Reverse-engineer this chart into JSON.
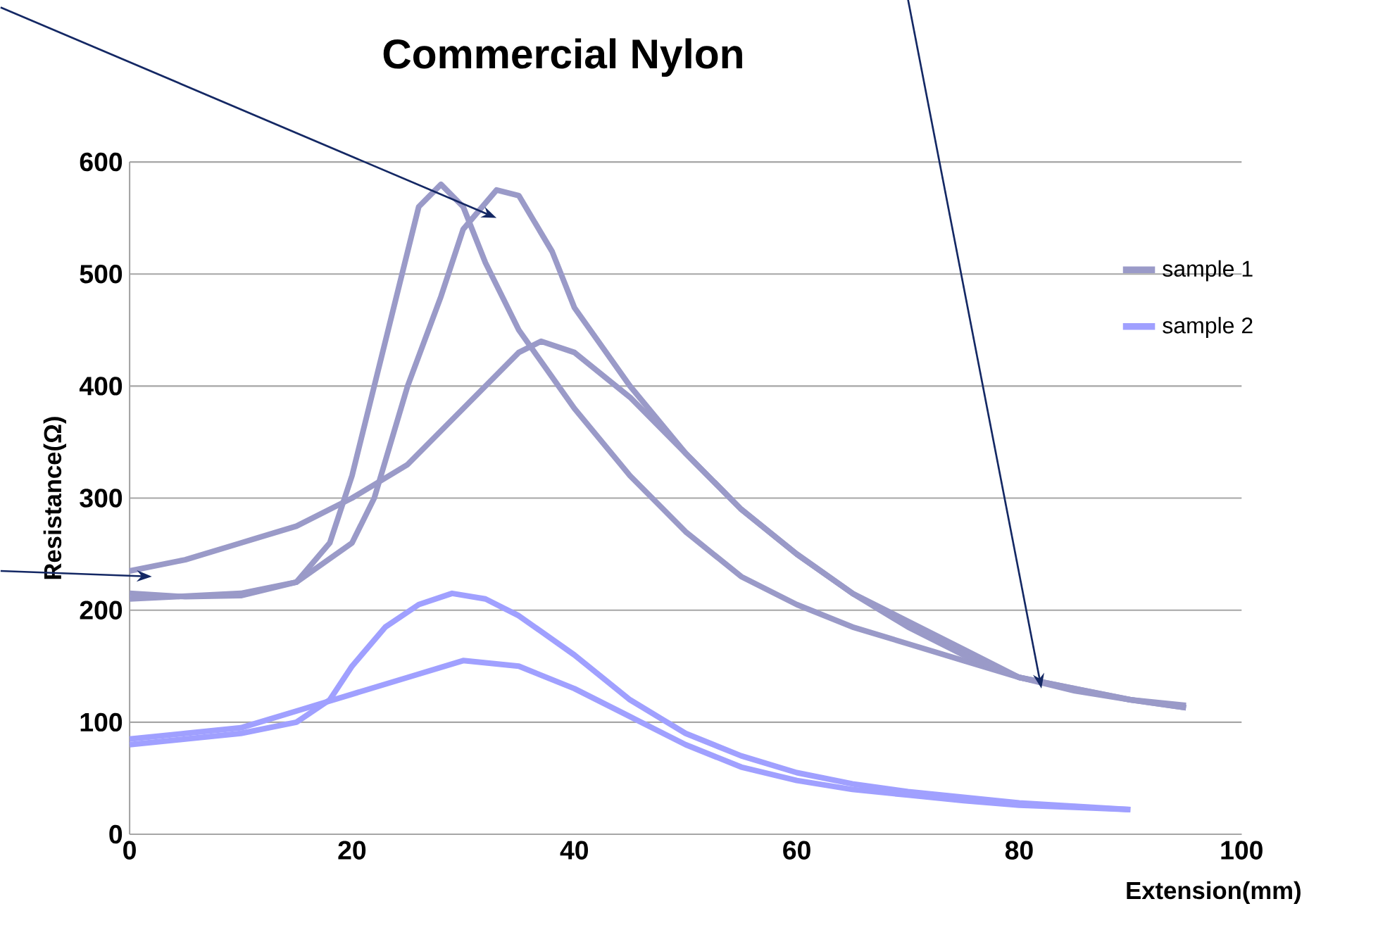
{
  "chart_data": {
    "type": "line",
    "title": "Commercial Nylon",
    "xlabel": "Extension(mm)",
    "ylabel": "Resistance(Ω)",
    "xlim": [
      0,
      100
    ],
    "ylim": [
      0,
      600
    ],
    "xticks": [
      0,
      20,
      40,
      60,
      80,
      100
    ],
    "yticks": [
      0,
      100,
      200,
      300,
      400,
      500,
      600
    ],
    "grid": "y",
    "legend": "right",
    "marker": "none",
    "line_style": "solid",
    "series": [
      {
        "name": "sample 1",
        "color": "#9a9ac8",
        "x": [
          0,
          5,
          10,
          15,
          18,
          20,
          22,
          24,
          26,
          28,
          30,
          32,
          35,
          40,
          45,
          50,
          55,
          60,
          65,
          70,
          75,
          80,
          85,
          90,
          95
        ],
        "values": [
          215,
          212,
          213,
          225,
          260,
          320,
          400,
          480,
          560,
          580,
          560,
          510,
          450,
          380,
          320,
          270,
          230,
          205,
          185,
          170,
          155,
          140,
          130,
          120,
          113
        ]
      },
      {
        "color": "#9a9ac8",
        "x": [
          0,
          10,
          15,
          20,
          22,
          25,
          28,
          30,
          33,
          35,
          38,
          40,
          45,
          50,
          55,
          60,
          65,
          70,
          75,
          80,
          85,
          90,
          95
        ],
        "values": [
          210,
          215,
          225,
          260,
          300,
          400,
          480,
          540,
          575,
          570,
          520,
          470,
          400,
          340,
          290,
          250,
          215,
          190,
          165,
          140,
          130,
          120,
          115
        ]
      },
      {
        "color": "#9a9ac8",
        "x": [
          0,
          5,
          10,
          15,
          20,
          25,
          30,
          35,
          37,
          40,
          45,
          50,
          55,
          60,
          65,
          70,
          75,
          80,
          85,
          90,
          95
        ],
        "values": [
          235,
          245,
          260,
          275,
          300,
          330,
          380,
          430,
          440,
          430,
          390,
          340,
          290,
          250,
          215,
          185,
          160,
          140,
          128,
          120,
          113
        ]
      },
      {
        "name": "sample 2",
        "color": "#a0a0ff",
        "x": [
          0,
          5,
          10,
          15,
          18,
          20,
          23,
          26,
          29,
          32,
          35,
          40,
          45,
          50,
          55,
          60,
          65,
          70,
          75,
          80,
          85,
          90
        ],
        "values": [
          80,
          85,
          90,
          100,
          120,
          150,
          185,
          205,
          215,
          210,
          195,
          160,
          120,
          90,
          70,
          55,
          45,
          38,
          33,
          28,
          25,
          22
        ]
      },
      {
        "color": "#a0a0ff",
        "x": [
          0,
          5,
          10,
          15,
          20,
          25,
          30,
          35,
          40,
          45,
          50,
          55,
          60,
          65,
          70,
          75,
          80,
          85,
          90
        ],
        "values": [
          85,
          90,
          95,
          110,
          125,
          140,
          155,
          150,
          130,
          105,
          80,
          60,
          48,
          40,
          35,
          30,
          26,
          24,
          22
        ]
      }
    ]
  }
}
